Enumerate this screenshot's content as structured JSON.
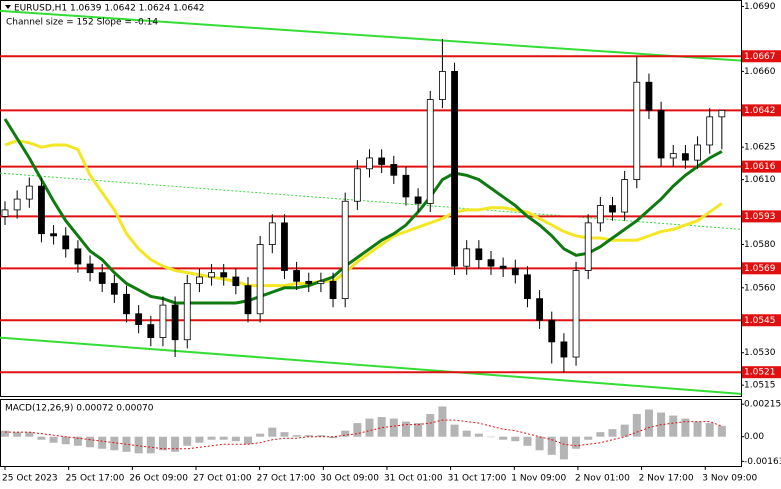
{
  "chart_data": {
    "type": "candlestick",
    "title": "EURUSD,H1  1.0639 1.0642 1.0624 1.0642",
    "subtitle": "Channel size = 152 Slope = -0.14",
    "open": [
      1.0593,
      1.0596,
      1.0601,
      1.0607,
      1.0585,
      1.0584,
      1.0578,
      1.0571,
      1.0567,
      1.0562,
      1.0557,
      1.0548,
      1.0543,
      1.0537,
      1.0552,
      1.0536,
      1.0562,
      1.0565,
      1.0567,
      1.0565,
      1.0561,
      1.0548,
      1.058,
      1.059,
      1.0568,
      1.0563,
      1.0562,
      1.0563,
      1.0555,
      1.06,
      1.0615,
      1.062,
      1.0617,
      1.0612,
      1.0602,
      1.0599,
      1.0647,
      1.066,
      1.057,
      1.0578,
      1.0573,
      1.057,
      1.0569,
      1.0566,
      1.0555,
      1.0545,
      1.0535,
      1.0528,
      1.0568,
      1.059,
      1.0598,
      1.0595,
      1.061,
      1.0655,
      1.0642,
      1.062,
      1.0622,
      1.0619,
      1.0626,
      1.0639
    ],
    "high": [
      1.06,
      1.0605,
      1.0611,
      1.0611,
      1.0589,
      1.0588,
      1.0582,
      1.0575,
      1.0571,
      1.0566,
      1.0561,
      1.0552,
      1.0547,
      1.0556,
      1.0556,
      1.0566,
      1.0569,
      1.0571,
      1.0571,
      1.0569,
      1.0565,
      1.0584,
      1.0594,
      1.0594,
      1.0572,
      1.0567,
      1.0567,
      1.0567,
      1.0604,
      1.0619,
      1.0624,
      1.0624,
      1.0621,
      1.0616,
      1.0606,
      1.0651,
      1.0675,
      1.0664,
      1.0582,
      1.0582,
      1.0577,
      1.0574,
      1.0573,
      1.057,
      1.0559,
      1.0549,
      1.0539,
      1.0572,
      1.0594,
      1.0602,
      1.0602,
      1.0614,
      1.0667,
      1.0659,
      1.0646,
      1.0626,
      1.0626,
      1.063,
      1.0643,
      1.0642
    ],
    "low": [
      1.0589,
      1.0592,
      1.0597,
      1.0581,
      1.058,
      1.0574,
      1.0567,
      1.0563,
      1.0558,
      1.0553,
      1.0544,
      1.0539,
      1.0533,
      1.0533,
      1.0528,
      1.0532,
      1.0558,
      1.0561,
      1.0561,
      1.0557,
      1.0544,
      1.0544,
      1.0576,
      1.0564,
      1.0559,
      1.0558,
      1.0558,
      1.0551,
      1.0551,
      1.0596,
      1.0611,
      1.0613,
      1.0608,
      1.0598,
      1.0595,
      1.0595,
      1.0643,
      1.0566,
      1.0566,
      1.0569,
      1.0566,
      1.0565,
      1.0562,
      1.0551,
      1.0541,
      1.0525,
      1.0521,
      1.0524,
      1.0564,
      1.0586,
      1.0591,
      1.0591,
      1.0606,
      1.0638,
      1.0616,
      1.0616,
      1.0615,
      1.0615,
      1.0622,
      1.0624
    ],
    "close": [
      1.0596,
      1.0601,
      1.0607,
      1.0585,
      1.0584,
      1.0578,
      1.0571,
      1.0567,
      1.0562,
      1.0557,
      1.0548,
      1.0543,
      1.0537,
      1.0552,
      1.0536,
      1.0562,
      1.0565,
      1.0567,
      1.0565,
      1.0561,
      1.0548,
      1.058,
      1.059,
      1.0568,
      1.0563,
      1.0562,
      1.0563,
      1.0555,
      1.06,
      1.0615,
      1.062,
      1.0617,
      1.0612,
      1.0602,
      1.0599,
      1.0647,
      1.066,
      1.057,
      1.0578,
      1.0573,
      1.057,
      1.0569,
      1.0566,
      1.0555,
      1.0545,
      1.0535,
      1.0528,
      1.0568,
      1.059,
      1.0598,
      1.0595,
      1.061,
      1.0655,
      1.0642,
      1.062,
      1.0622,
      1.0619,
      1.0626,
      1.0639,
      1.0642
    ],
    "series": [
      {
        "color": "#f5e625",
        "values": [
          1.0626,
          1.0628,
          1.0627,
          1.0625,
          1.0626,
          1.0626,
          1.0624,
          1.0612,
          1.0604,
          1.0596,
          1.0585,
          1.0578,
          1.0573,
          1.057,
          1.0568,
          1.0567,
          1.0566,
          1.0565,
          1.0564,
          1.0563,
          1.0561,
          1.0561,
          1.0561,
          1.0561,
          1.0562,
          1.0562,
          1.0563,
          1.0563,
          1.0567,
          1.0572,
          1.0576,
          1.058,
          1.0584,
          1.0586,
          1.0588,
          1.059,
          1.0592,
          1.0595,
          1.0596,
          1.0596,
          1.0597,
          1.0597,
          1.0596,
          1.0595,
          1.0592,
          1.0589,
          1.0586,
          1.0584,
          1.0583,
          1.0583,
          1.0582,
          1.0582,
          1.0582,
          1.0584,
          1.0586,
          1.0587,
          1.0589,
          1.0591,
          1.0595,
          1.0599
        ]
      },
      {
        "color": "#0f7a0f",
        "values": [
          1.0638,
          1.0629,
          1.062,
          1.061,
          1.06,
          1.0591,
          1.0584,
          1.0577,
          1.0573,
          1.0567,
          1.0562,
          1.0559,
          1.0556,
          1.0555,
          1.0553,
          1.0553,
          1.0553,
          1.0553,
          1.0553,
          1.0553,
          1.0554,
          1.0556,
          1.0558,
          1.056,
          1.056,
          1.0561,
          1.0563,
          1.0565,
          1.057,
          1.0574,
          1.0578,
          1.0582,
          1.0585,
          1.0589,
          1.0595,
          1.0602,
          1.061,
          1.0613,
          1.0612,
          1.061,
          1.0606,
          1.0602,
          1.0598,
          1.0593,
          1.0589,
          1.0584,
          1.0578,
          1.0575,
          1.0576,
          1.0579,
          1.0583,
          1.0587,
          1.0591,
          1.0596,
          1.0601,
          1.0607,
          1.0612,
          1.0616,
          1.062,
          1.0623
        ]
      }
    ],
    "trend_lines": [
      {
        "color": "#33dd33",
        "start": 1.0688,
        "end": 1.0665
      },
      {
        "color": "#33dd33",
        "start": 1.0537,
        "end": 1.0511
      },
      {
        "color": "#33dd33",
        "start": 1.0613,
        "end": 1.0587,
        "dashed": true
      }
    ],
    "levels": [
      1.0667,
      1.0642,
      1.0616,
      1.0593,
      1.0569,
      1.0545,
      1.0521
    ],
    "level_color": "#e01010",
    "ylim": [
      1.051,
      1.0693
    ],
    "yticks": [
      {
        "value": 1.069,
        "label": "1.0690"
      },
      {
        "value": 1.066,
        "label": "1.0660"
      },
      1.0625,
      {
        "value": 1.061,
        "label": "1.0610"
      },
      {
        "value": 1.058,
        "label": "1.0580"
      },
      {
        "value": 1.056,
        "label": "1.0560"
      },
      {
        "value": 1.053,
        "label": "1.0530"
      },
      1.0515
    ],
    "x_labels": [
      "25 Oct 2023",
      "25 Oct 17:00",
      "26 Oct 09:00",
      "27 Oct 01:00",
      "27 Oct 17:00",
      "30 Oct 09:00",
      "31 Oct 01:00",
      "31 Oct 17:00",
      "1 Nov 09:00",
      "2 Nov 01:00",
      "2 Nov 17:00",
      "3 Nov 09:00"
    ],
    "macd": {
      "title": "MACD(12,26,9) 0.00072 0.00070",
      "histogram": [
        0.0004,
        0.0003,
        0.0003,
        -0.0002,
        -0.0004,
        -0.0005,
        -0.0006,
        -0.0007,
        -0.0008,
        -0.0009,
        -0.001,
        -0.0011,
        -0.0011,
        -0.0009,
        -0.001,
        -0.0006,
        -0.0004,
        -0.0002,
        -0.0002,
        -0.0003,
        -0.0005,
        0.0002,
        0.0006,
        0.0003,
        0.0001,
        0.0001,
        0.0001,
        -0.0001,
        0.0004,
        0.0009,
        0.0012,
        0.0013,
        0.0012,
        0.001,
        0.0009,
        0.0015,
        0.002,
        0.0008,
        0.0004,
        0.0002,
        0.0,
        -0.0002,
        -0.0003,
        -0.0006,
        -0.0009,
        -0.0012,
        -0.0015,
        -0.0008,
        -0.0002,
        0.0003,
        0.0005,
        0.0008,
        0.0015,
        0.0018,
        0.0016,
        0.0014,
        0.0012,
        0.001,
        0.0009,
        0.00072
      ],
      "signal": [
        0.0003,
        0.0003,
        0.0003,
        0.0002,
        0.0001,
        0.0,
        -0.0001,
        -0.0002,
        -0.0003,
        -0.0004,
        -0.0005,
        -0.0006,
        -0.0007,
        -0.0008,
        -0.0008,
        -0.0008,
        -0.0007,
        -0.0006,
        -0.0005,
        -0.0005,
        -0.0005,
        -0.0004,
        -0.0002,
        -0.0001,
        -0.0001,
        0.0,
        0.0,
        0.0,
        0.0001,
        0.0002,
        0.0004,
        0.0006,
        0.0007,
        0.0008,
        0.0008,
        0.0009,
        0.0011,
        0.0011,
        0.001,
        0.0009,
        0.0007,
        0.0005,
        0.0004,
        0.0002,
        0.0,
        -0.0002,
        -0.0005,
        -0.0006,
        -0.0005,
        -0.0004,
        -0.0002,
        0.0,
        0.0003,
        0.0006,
        0.0008,
        0.0009,
        0.001,
        0.001,
        0.001,
        0.0007
      ],
      "histogram_color": "#b4b4b4",
      "signal_color": "#e01010",
      "ylim": [
        -0.00194,
        0.00243
      ],
      "yticks": [
        0.00215,
        {
          "value": 0,
          "label": "0.00"
        },
        -0.00163
      ]
    }
  }
}
